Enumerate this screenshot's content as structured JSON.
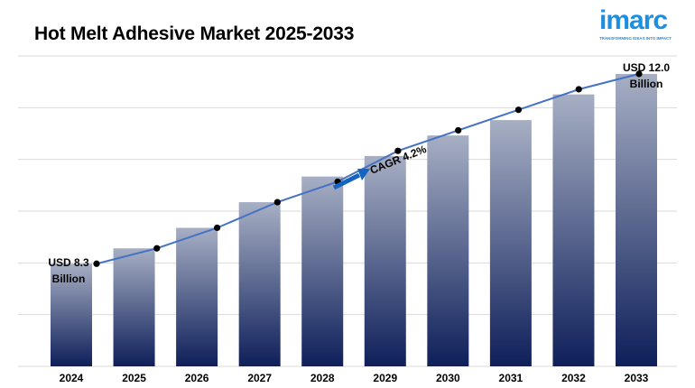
{
  "header": {
    "title": "Hot Melt Adhesive Market 2025-2033"
  },
  "logo": {
    "word": "imarc",
    "tagline": "TRANSFORMING IDEAS INTO IMPACT"
  },
  "colors": {
    "bar_top": "#a7afc4",
    "bar_bottom": "#0e1f5a",
    "line": "#4472c4",
    "arrow": "#1565c0",
    "grid": "#d9d9d9"
  },
  "chart_data": {
    "type": "bar",
    "categories": [
      "2024",
      "2025",
      "2026",
      "2027",
      "2028",
      "2029",
      "2030",
      "2031",
      "2032",
      "2033"
    ],
    "values": [
      8.3,
      8.6,
      9.0,
      9.5,
      10.0,
      10.4,
      10.8,
      11.1,
      11.6,
      12.0
    ],
    "trend_line": [
      8.3,
      8.6,
      9.0,
      9.5,
      9.9,
      10.5,
      10.9,
      11.3,
      11.7,
      12.0
    ],
    "ylim": [
      6.3,
      12.35
    ],
    "grid": true,
    "annotations": {
      "start_line1": "USD 8.3",
      "start_line2": "Billion",
      "end_line1": "USD 12.0",
      "end_line2": "Billion",
      "cagr": "CAGR 4.2%"
    }
  }
}
